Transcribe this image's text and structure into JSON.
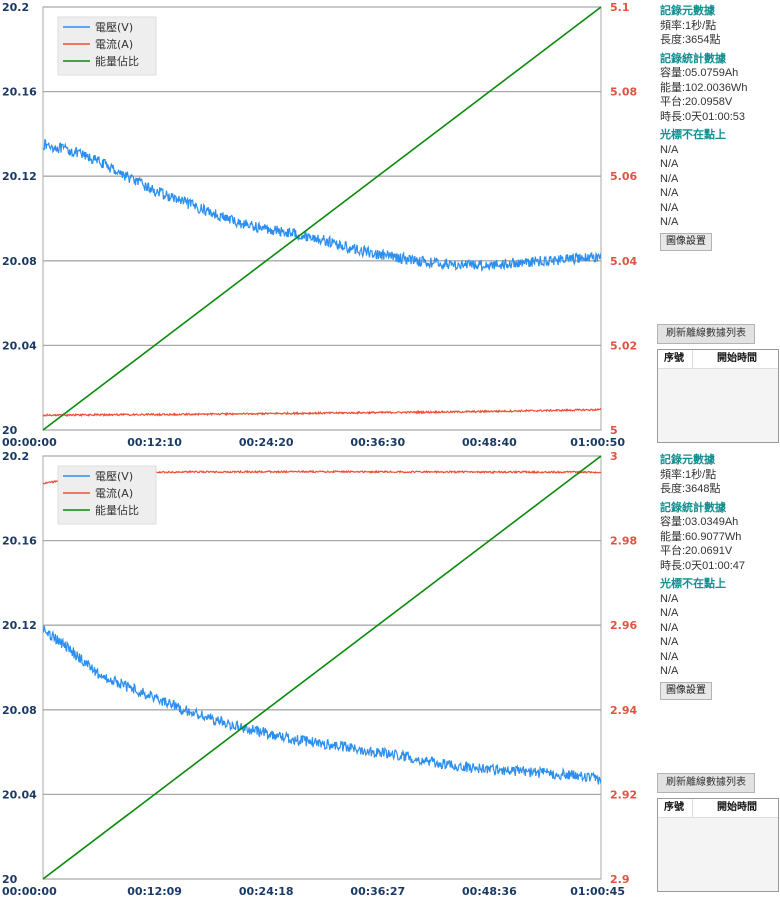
{
  "colors": {
    "voltage": "#2b8ff0",
    "current": "#f04e33",
    "energy": "#0a8a0a",
    "grid": "#a9a9a9",
    "left_axis_text": "#1a3a66",
    "right_axis_text": "#e0543f",
    "header_text": "#0f8f8f"
  },
  "legend": [
    "電壓(V)",
    "電流(A)",
    "能量佔比"
  ],
  "chart_data": [
    {
      "type": "line",
      "x_ticks": [
        "00:00:00",
        "00:12:10",
        "00:24:20",
        "00:36:30",
        "00:48:40",
        "01:00:50"
      ],
      "left_ylim": [
        20,
        20.2
      ],
      "left_ticks": [
        "20",
        "20.04",
        "20.08",
        "20.12",
        "20.16",
        "20.2"
      ],
      "right_ylim": [
        5,
        5.1
      ],
      "right_ticks": [
        "5",
        "5.02",
        "5.04",
        "5.06",
        "5.08",
        "5.1"
      ],
      "series": [
        {
          "name": "電壓(V)",
          "axis": "left",
          "x": [
            0,
            0.05,
            0.1,
            0.15,
            0.2,
            0.25,
            0.3,
            0.35,
            0.4,
            0.45,
            0.5,
            0.55,
            0.6,
            0.65,
            0.7,
            0.75,
            0.8,
            0.85,
            0.9,
            0.95,
            1.0
          ],
          "values": [
            20.135,
            20.132,
            20.127,
            20.12,
            20.113,
            20.108,
            20.103,
            20.098,
            20.095,
            20.093,
            20.09,
            20.086,
            20.083,
            20.081,
            20.079,
            20.078,
            20.078,
            20.079,
            20.08,
            20.081,
            20.082
          ],
          "noise": 0.0025
        },
        {
          "name": "電流(A)",
          "axis": "right",
          "x": [
            0,
            0.25,
            0.5,
            0.75,
            1.0
          ],
          "values": [
            5.0035,
            5.0037,
            5.004,
            5.0043,
            5.0048
          ],
          "noise": 0.0002
        },
        {
          "name": "能量佔比",
          "axis": "right",
          "x": [
            0,
            1.0
          ],
          "values": [
            5.0,
            5.1
          ],
          "noise": 0
        }
      ]
    },
    {
      "type": "line",
      "x_ticks": [
        "00:00:00",
        "00:12:09",
        "00:24:18",
        "00:36:27",
        "00:48:36",
        "01:00:45"
      ],
      "left_ylim": [
        20,
        20.2
      ],
      "left_ticks": [
        "20",
        "20.04",
        "20.08",
        "20.12",
        "20.16",
        "20.2"
      ],
      "right_ylim": [
        2.9,
        3.0
      ],
      "right_ticks": [
        "2.9",
        "2.92",
        "2.94",
        "2.96",
        "2.98",
        "3"
      ],
      "series": [
        {
          "name": "電壓(V)",
          "axis": "left",
          "x": [
            0,
            0.05,
            0.1,
            0.15,
            0.2,
            0.25,
            0.3,
            0.35,
            0.4,
            0.45,
            0.5,
            0.55,
            0.6,
            0.65,
            0.7,
            0.75,
            0.8,
            0.85,
            0.9,
            0.95,
            1.0
          ],
          "values": [
            20.118,
            20.108,
            20.097,
            20.091,
            20.086,
            20.08,
            20.076,
            20.072,
            20.069,
            20.066,
            20.064,
            20.062,
            20.06,
            20.058,
            20.055,
            20.053,
            20.052,
            20.051,
            20.05,
            20.049,
            20.047
          ],
          "noise": 0.0025
        },
        {
          "name": "電流(A)",
          "axis": "right",
          "x": [
            0,
            0.05,
            0.1,
            0.2,
            0.5,
            0.8,
            1.0
          ],
          "values": [
            2.9935,
            2.9945,
            2.9955,
            2.9962,
            2.9963,
            2.9962,
            2.9962
          ],
          "noise": 0.0002
        },
        {
          "name": "能量佔比",
          "axis": "right",
          "x": [
            0,
            1.0
          ],
          "values": [
            2.9,
            3.0
          ],
          "noise": 0
        }
      ]
    }
  ],
  "panels": [
    {
      "metadata_header": "記錄元數據",
      "frequency": "頻率:1秒/點",
      "length": "長度:3654點",
      "stats_header": "記錄統計數據",
      "capacity": "容量:05.0759Ah",
      "energy": "能量:102.0036Wh",
      "platform": "平台:20.0958V",
      "duration": "時長:0天01:00:53",
      "cursor_header": "光標不在點上",
      "cursor_values": [
        "N/A",
        "N/A",
        "N/A",
        "N/A",
        "N/A",
        "N/A"
      ],
      "image_settings_button": "圖像設置",
      "refresh_button": "刷新離線數據列表",
      "list_columns": [
        "序號",
        "開始時間"
      ]
    },
    {
      "metadata_header": "記錄元數據",
      "frequency": "頻率:1秒/點",
      "length": "長度:3648點",
      "stats_header": "記錄統計數據",
      "capacity": "容量:03.0349Ah",
      "energy": "能量:60.9077Wh",
      "platform": "平台:20.0691V",
      "duration": "時長:0天01:00:47",
      "cursor_header": "光標不在點上",
      "cursor_values": [
        "N/A",
        "N/A",
        "N/A",
        "N/A",
        "N/A",
        "N/A"
      ],
      "image_settings_button": "圖像設置",
      "refresh_button": "刷新離線數據列表",
      "list_columns": [
        "序號",
        "開始時間"
      ]
    }
  ]
}
